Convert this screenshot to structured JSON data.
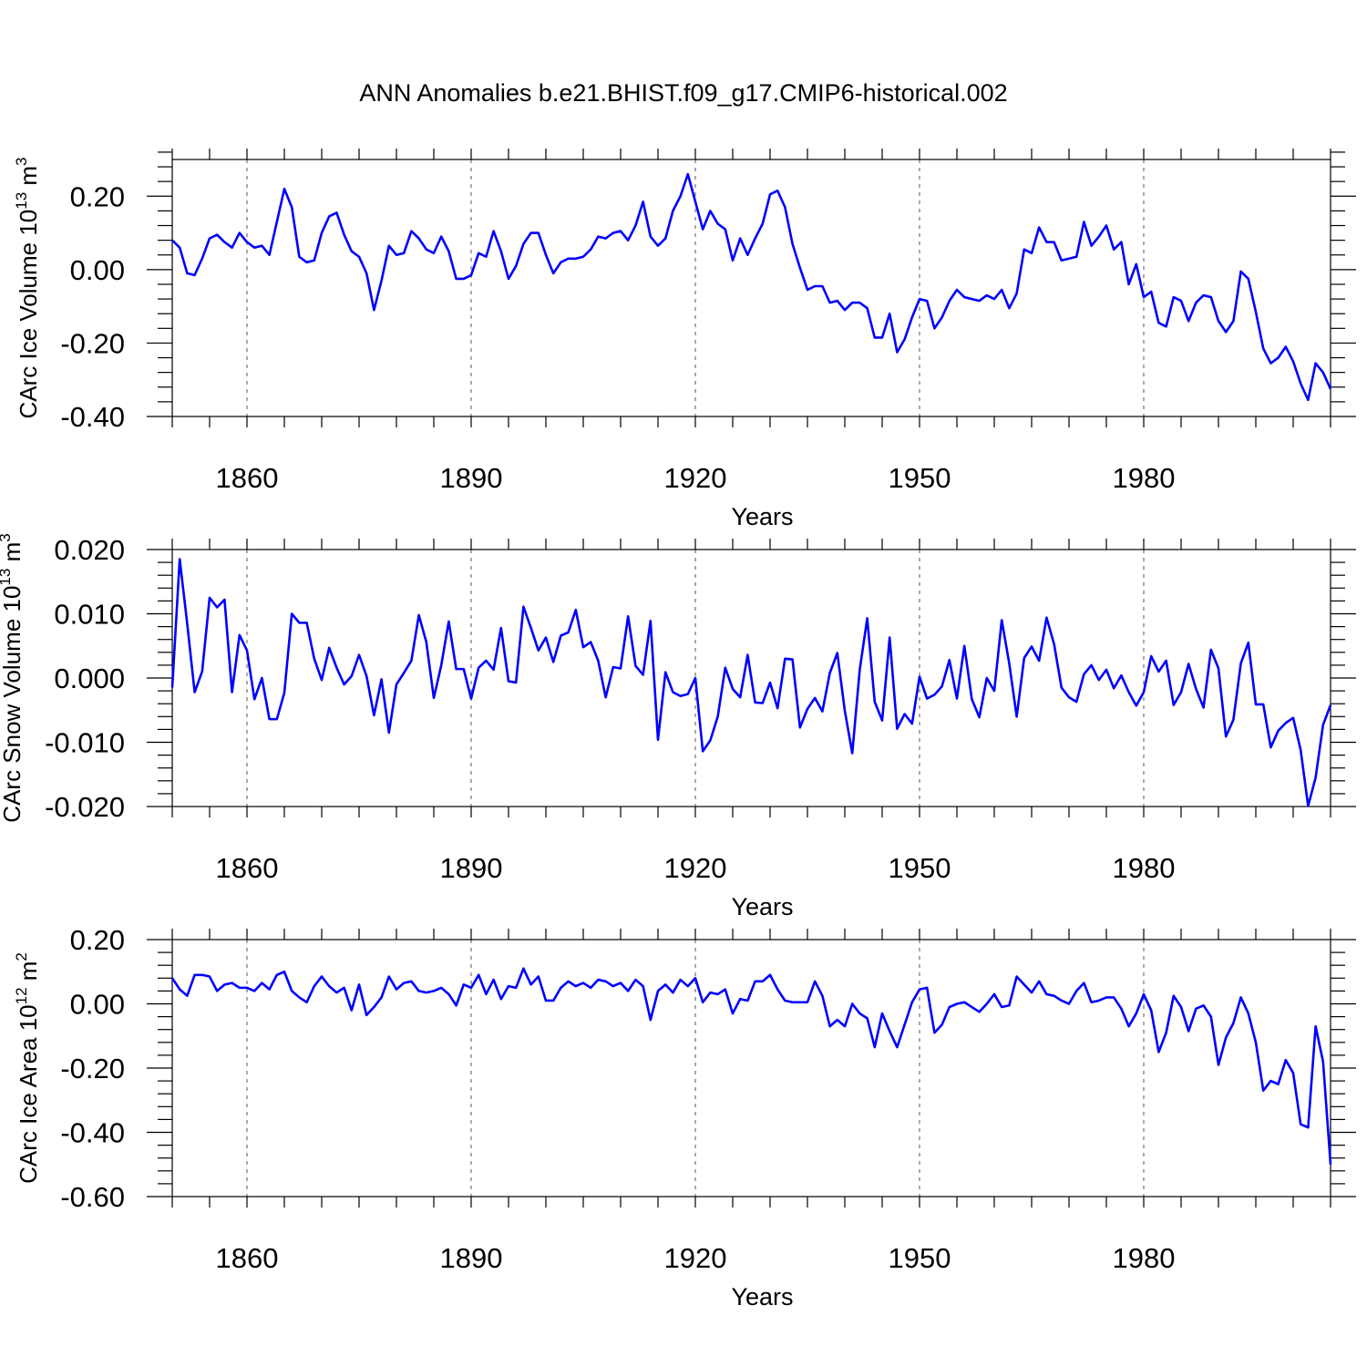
{
  "title": "ANN Anomalies b.e21.BHIST.f09_g17.CMIP6-historical.002",
  "colors": {
    "series": "#0000ff",
    "axis": "#000000",
    "grid": "#555555"
  },
  "chart_data": [
    {
      "type": "line",
      "id": "ice-volume",
      "ylabel_main": "CArc Ice Volume 10",
      "ylabel_exp": "13",
      "ylabel_unit": " m",
      "ylabel_unit_exp": "3",
      "xlabel": "Years",
      "xlim": [
        1850,
        2005
      ],
      "ylim": [
        -0.4,
        0.3
      ],
      "xticks": [
        1860,
        1890,
        1920,
        1950,
        1980
      ],
      "xtick_labels": [
        "1860",
        "1890",
        "1920",
        "1950",
        "1980"
      ],
      "yticks": [
        0.2,
        0.0,
        -0.2,
        -0.4
      ],
      "ytick_labels": [
        "0.20",
        "0.00",
        "-0.20",
        "-0.40"
      ],
      "x_start": 1850,
      "values": [
        0.08,
        0.06,
        -0.01,
        -0.015,
        0.03,
        0.085,
        0.095,
        0.075,
        0.06,
        0.1,
        0.075,
        0.06,
        0.065,
        0.04,
        0.13,
        0.22,
        0.17,
        0.035,
        0.02,
        0.025,
        0.1,
        0.145,
        0.155,
        0.095,
        0.05,
        0.035,
        -0.01,
        -0.11,
        -0.03,
        0.065,
        0.04,
        0.045,
        0.105,
        0.085,
        0.055,
        0.045,
        0.09,
        0.05,
        -0.025,
        -0.025,
        -0.015,
        0.045,
        0.035,
        0.105,
        0.05,
        -0.025,
        0.01,
        0.07,
        0.1,
        0.1,
        0.04,
        -0.01,
        0.02,
        0.03,
        0.03,
        0.035,
        0.055,
        0.09,
        0.085,
        0.1,
        0.105,
        0.08,
        0.12,
        0.185,
        0.09,
        0.065,
        0.085,
        0.16,
        0.2,
        0.26,
        0.185,
        0.11,
        0.16,
        0.125,
        0.11,
        0.025,
        0.085,
        0.04,
        0.085,
        0.125,
        0.205,
        0.215,
        0.17,
        0.07,
        0.005,
        -0.055,
        -0.045,
        -0.045,
        -0.09,
        -0.085,
        -0.11,
        -0.09,
        -0.09,
        -0.105,
        -0.185,
        -0.185,
        -0.12,
        -0.225,
        -0.19,
        -0.13,
        -0.08,
        -0.085,
        -0.16,
        -0.13,
        -0.085,
        -0.055,
        -0.075,
        -0.08,
        -0.085,
        -0.07,
        -0.08,
        -0.055,
        -0.105,
        -0.065,
        0.055,
        0.045,
        0.115,
        0.075,
        0.075,
        0.025,
        0.03,
        0.035,
        0.13,
        0.065,
        0.09,
        0.12,
        0.055,
        0.075,
        -0.04,
        0.015,
        -0.075,
        -0.06,
        -0.145,
        -0.155,
        -0.075,
        -0.085,
        -0.14,
        -0.09,
        -0.07,
        -0.075,
        -0.14,
        -0.17,
        -0.14,
        -0.005,
        -0.025,
        -0.115,
        -0.215,
        -0.255,
        -0.24,
        -0.21,
        -0.25,
        -0.31,
        -0.355,
        -0.255,
        -0.28,
        -0.325
      ]
    },
    {
      "type": "line",
      "id": "snow-volume",
      "ylabel_main": "CArc Snow Volume 10",
      "ylabel_exp": "13",
      "ylabel_unit": " m",
      "ylabel_unit_exp": "3",
      "xlabel": "Years",
      "xlim": [
        1850,
        2005
      ],
      "ylim": [
        -0.02,
        0.02
      ],
      "xticks": [
        1860,
        1890,
        1920,
        1950,
        1980
      ],
      "xtick_labels": [
        "1860",
        "1890",
        "1920",
        "1950",
        "1980"
      ],
      "yticks": [
        0.02,
        0.01,
        0.0,
        -0.01,
        -0.02
      ],
      "ytick_labels": [
        "0.020",
        "0.010",
        "0.000",
        "-0.010",
        "-0.020"
      ],
      "x_start": 1850,
      "values": [
        -0.0015,
        0.0185,
        0.0085,
        -0.0022,
        0.001,
        0.0125,
        0.011,
        0.0122,
        -0.0022,
        0.0067,
        0.0043,
        -0.0033,
        0.0,
        -0.0064,
        -0.0064,
        -0.0023,
        0.01,
        0.0086,
        0.0086,
        0.003,
        -0.0003,
        0.0047,
        0.0016,
        -0.001,
        0.0003,
        0.0036,
        0.0003,
        -0.0058,
        -0.0002,
        -0.0085,
        -0.001,
        0.0008,
        0.0027,
        0.0098,
        0.0056,
        -0.0031,
        0.002,
        0.0088,
        0.0014,
        0.0014,
        -0.0032,
        0.0016,
        0.0027,
        0.0013,
        0.0078,
        -0.0005,
        -0.0007,
        0.0111,
        0.0078,
        0.0043,
        0.0063,
        0.0025,
        0.0066,
        0.0071,
        0.0106,
        0.0048,
        0.0056,
        0.0027,
        -0.003,
        0.0017,
        0.0015,
        0.0096,
        0.0019,
        0.0005,
        0.0089,
        -0.0096,
        0.0009,
        -0.0022,
        -0.0028,
        -0.0025,
        0.0,
        -0.0114,
        -0.0097,
        -0.006,
        0.0016,
        -0.0017,
        -0.003,
        0.0036,
        -0.0038,
        -0.0039,
        -0.0007,
        -0.0047,
        0.003,
        0.0029,
        -0.0077,
        -0.0048,
        -0.0031,
        -0.0052,
        0.0008,
        0.0039,
        -0.0051,
        -0.0117,
        0.0013,
        0.0093,
        -0.0037,
        -0.0066,
        0.0063,
        -0.0079,
        -0.0056,
        -0.0071,
        0.0002,
        -0.0032,
        -0.0026,
        -0.0013,
        0.0028,
        -0.0032,
        0.005,
        -0.0033,
        -0.0061,
        0.0,
        -0.002,
        0.009,
        0.0023,
        -0.006,
        0.0031,
        0.0049,
        0.0027,
        0.0094,
        0.0053,
        -0.0015,
        -0.003,
        -0.0037,
        0.0006,
        0.002,
        -0.0003,
        0.0013,
        -0.0016,
        0.0004,
        -0.0022,
        -0.0043,
        -0.0022,
        0.0034,
        0.001,
        0.0027,
        -0.0042,
        -0.0022,
        0.0022,
        -0.0017,
        -0.0046,
        0.0044,
        0.0015,
        -0.0091,
        -0.0065,
        0.0023,
        0.0055,
        -0.0041,
        -0.0041,
        -0.0108,
        -0.0082,
        -0.007,
        -0.0062,
        -0.0112,
        -0.0199,
        -0.0155,
        -0.0073,
        -0.0042
      ]
    },
    {
      "type": "line",
      "id": "ice-area",
      "ylabel_main": "CArc Ice Area 10",
      "ylabel_exp": "12",
      "ylabel_unit": " m",
      "ylabel_unit_exp": "2",
      "xlabel": "Years",
      "xlim": [
        1850,
        2005
      ],
      "ylim": [
        -0.6,
        0.2
      ],
      "xticks": [
        1860,
        1890,
        1920,
        1950,
        1980
      ],
      "xtick_labels": [
        "1860",
        "1890",
        "1920",
        "1950",
        "1980"
      ],
      "yticks": [
        0.2,
        0.0,
        -0.2,
        -0.4,
        -0.6
      ],
      "ytick_labels": [
        "0.20",
        "0.00",
        "-0.20",
        "-0.40",
        "-0.60"
      ],
      "x_start": 1850,
      "values": [
        0.08,
        0.045,
        0.025,
        0.09,
        0.09,
        0.085,
        0.04,
        0.06,
        0.065,
        0.05,
        0.05,
        0.04,
        0.065,
        0.045,
        0.09,
        0.1,
        0.04,
        0.02,
        0.005,
        0.055,
        0.085,
        0.055,
        0.035,
        0.05,
        -0.02,
        0.06,
        -0.035,
        -0.01,
        0.02,
        0.085,
        0.045,
        0.065,
        0.07,
        0.04,
        0.035,
        0.04,
        0.05,
        0.03,
        -0.005,
        0.06,
        0.05,
        0.09,
        0.03,
        0.075,
        0.015,
        0.055,
        0.05,
        0.11,
        0.06,
        0.085,
        0.01,
        0.01,
        0.05,
        0.07,
        0.055,
        0.065,
        0.05,
        0.075,
        0.07,
        0.055,
        0.065,
        0.04,
        0.075,
        0.055,
        -0.05,
        0.04,
        0.06,
        0.035,
        0.075,
        0.055,
        0.08,
        0.005,
        0.035,
        0.03,
        0.045,
        -0.03,
        0.015,
        0.01,
        0.07,
        0.07,
        0.09,
        0.045,
        0.01,
        0.005,
        0.005,
        0.005,
        0.07,
        0.025,
        -0.07,
        -0.05,
        -0.07,
        0.0,
        -0.03,
        -0.045,
        -0.135,
        -0.03,
        -0.085,
        -0.135,
        -0.065,
        0.005,
        0.045,
        0.05,
        -0.09,
        -0.065,
        -0.01,
        0.0,
        0.005,
        -0.01,
        -0.025,
        0.0,
        0.03,
        -0.01,
        -0.005,
        0.085,
        0.06,
        0.035,
        0.07,
        0.03,
        0.025,
        0.01,
        0.0,
        0.04,
        0.065,
        0.005,
        0.01,
        0.02,
        0.02,
        -0.015,
        -0.07,
        -0.03,
        0.03,
        -0.02,
        -0.15,
        -0.09,
        0.025,
        -0.01,
        -0.085,
        -0.015,
        -0.005,
        -0.04,
        -0.19,
        -0.105,
        -0.06,
        0.02,
        -0.03,
        -0.12,
        -0.27,
        -0.24,
        -0.25,
        -0.175,
        -0.215,
        -0.375,
        -0.385,
        -0.07,
        -0.18,
        -0.5
      ]
    }
  ]
}
